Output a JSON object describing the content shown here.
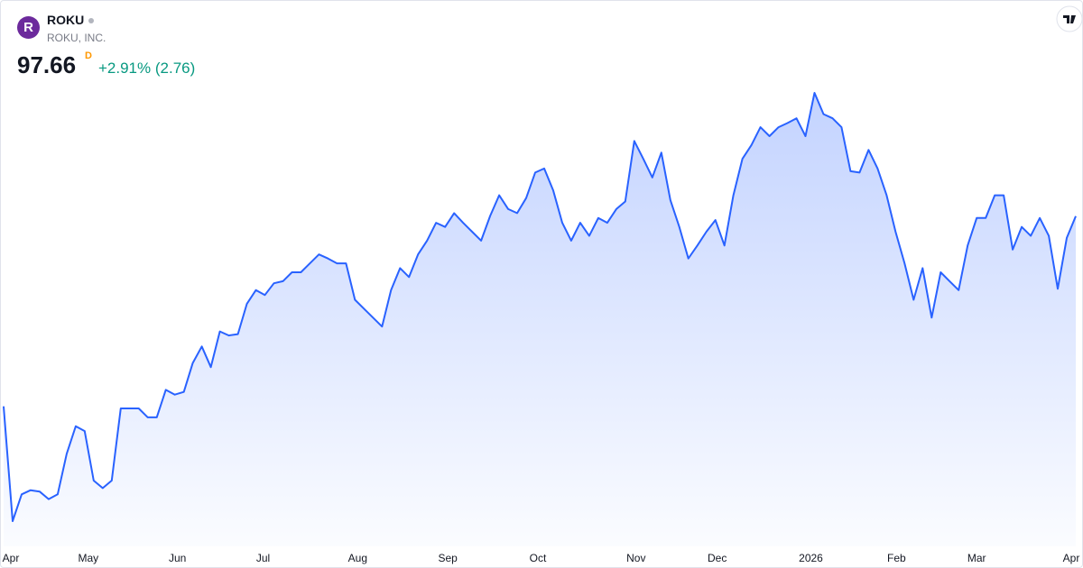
{
  "header": {
    "logo": "R",
    "symbol": "ROKU",
    "company": "ROKU, INC.",
    "price": 97.66,
    "price_flag": "D",
    "change_percent": "+2.91%",
    "change": "(2.76)"
  },
  "chart_data": {
    "type": "area",
    "color": "#2962ff",
    "values": [
      70.0,
      53.3,
      57.2,
      57.8,
      57.6,
      56.5,
      57.2,
      63.1,
      67.1,
      66.4,
      59.2,
      58.1,
      59.2,
      69.7,
      69.7,
      69.7,
      68.4,
      68.4,
      72.4,
      71.7,
      72.1,
      76.3,
      78.7,
      75.7,
      80.9,
      80.3,
      80.5,
      84.9,
      86.9,
      86.2,
      87.9,
      88.2,
      89.5,
      89.5,
      90.8,
      92.1,
      91.5,
      90.8,
      90.8,
      85.5,
      84.2,
      82.9,
      81.6,
      86.9,
      90.1,
      88.8,
      92.1,
      94.1,
      96.7,
      96.1,
      98.1,
      96.7,
      95.4,
      94.1,
      97.7,
      100.7,
      98.7,
      98.1,
      100.3,
      104.0,
      104.6,
      101.4,
      96.7,
      94.1,
      96.7,
      94.8,
      97.4,
      96.7,
      98.7,
      99.8,
      108.6,
      106.0,
      103.3,
      106.9,
      100.0,
      96.1,
      91.5,
      93.4,
      95.4,
      97.1,
      93.4,
      100.7,
      106.0,
      108.0,
      110.6,
      109.3,
      110.6,
      111.2,
      111.9,
      109.3,
      115.6,
      112.5,
      111.9,
      110.6,
      104.2,
      104.0,
      107.3,
      104.6,
      100.7,
      95.4,
      90.8,
      85.5,
      90.1,
      82.9,
      89.5,
      88.2,
      86.9,
      93.4,
      97.4,
      97.4,
      100.7,
      100.7,
      92.8,
      96.1,
      94.8,
      97.4,
      94.8,
      87.1,
      94.5,
      97.66
    ],
    "xlim": [
      0,
      119
    ],
    "xticks": [
      {
        "value": 0.8,
        "label": "Apr"
      },
      {
        "value": 9.4,
        "label": "May"
      },
      {
        "value": 19.3,
        "label": "Jun"
      },
      {
        "value": 28.8,
        "label": "Jul"
      },
      {
        "value": 39.3,
        "label": "Aug"
      },
      {
        "value": 49.3,
        "label": "Sep"
      },
      {
        "value": 59.3,
        "label": "Oct"
      },
      {
        "value": 70.2,
        "label": "Nov"
      },
      {
        "value": 79.2,
        "label": "Dec"
      },
      {
        "value": 89.6,
        "label": "2026"
      },
      {
        "value": 99.1,
        "label": "Feb"
      },
      {
        "value": 108.0,
        "label": "Mar"
      },
      {
        "value": 118.5,
        "label": "Apr"
      }
    ]
  }
}
